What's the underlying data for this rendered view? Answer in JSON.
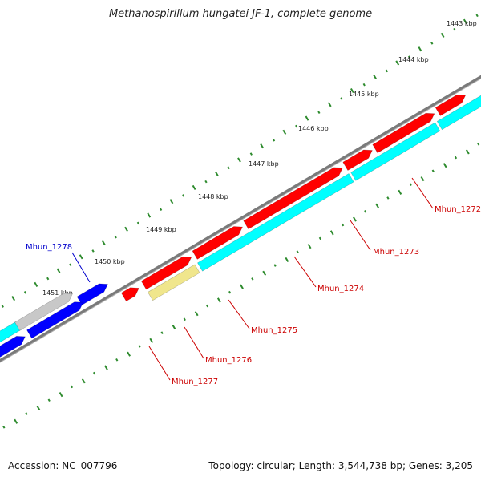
{
  "title": "Methanospirillum hungatei JF-1, complete genome",
  "footer": {
    "accession": "Accession: NC_007796",
    "summary": "Topology: circular; Length: 3,544,738 bp; Genes: 3,205"
  },
  "colors": {
    "forward_gene": "#ff0000",
    "reverse_gene": "#00ffff",
    "other_forward": "#0000ff",
    "gray_feature": "#c8c8c8",
    "yellow_feature": "#f0e68c",
    "navy_feature": "#4a4a8c",
    "genome_line": "#808080",
    "tick": "#2e8b2e",
    "label_red": "#cc0000",
    "label_blue": "#0000cc"
  },
  "scale_ticks": [
    {
      "label": "1443 kbp"
    },
    {
      "label": "1444 kbp"
    },
    {
      "label": "1445 kbp"
    },
    {
      "label": "1446 kbp"
    },
    {
      "label": "1447 kbp"
    },
    {
      "label": "1448 kbp"
    },
    {
      "label": "1449 kbp"
    },
    {
      "label": "1450 kbp"
    },
    {
      "label": "1451 kbp"
    }
  ],
  "gene_labels": [
    {
      "name": "Mhun_1272",
      "color": "label_red"
    },
    {
      "name": "Mhun_1273",
      "color": "label_red"
    },
    {
      "name": "Mhun_1274",
      "color": "label_red"
    },
    {
      "name": "Mhun_1275",
      "color": "label_red"
    },
    {
      "name": "Mhun_1276",
      "color": "label_red"
    },
    {
      "name": "Mhun_1277",
      "color": "label_red"
    },
    {
      "name": "Mhun_1278",
      "color": "label_blue"
    }
  ]
}
